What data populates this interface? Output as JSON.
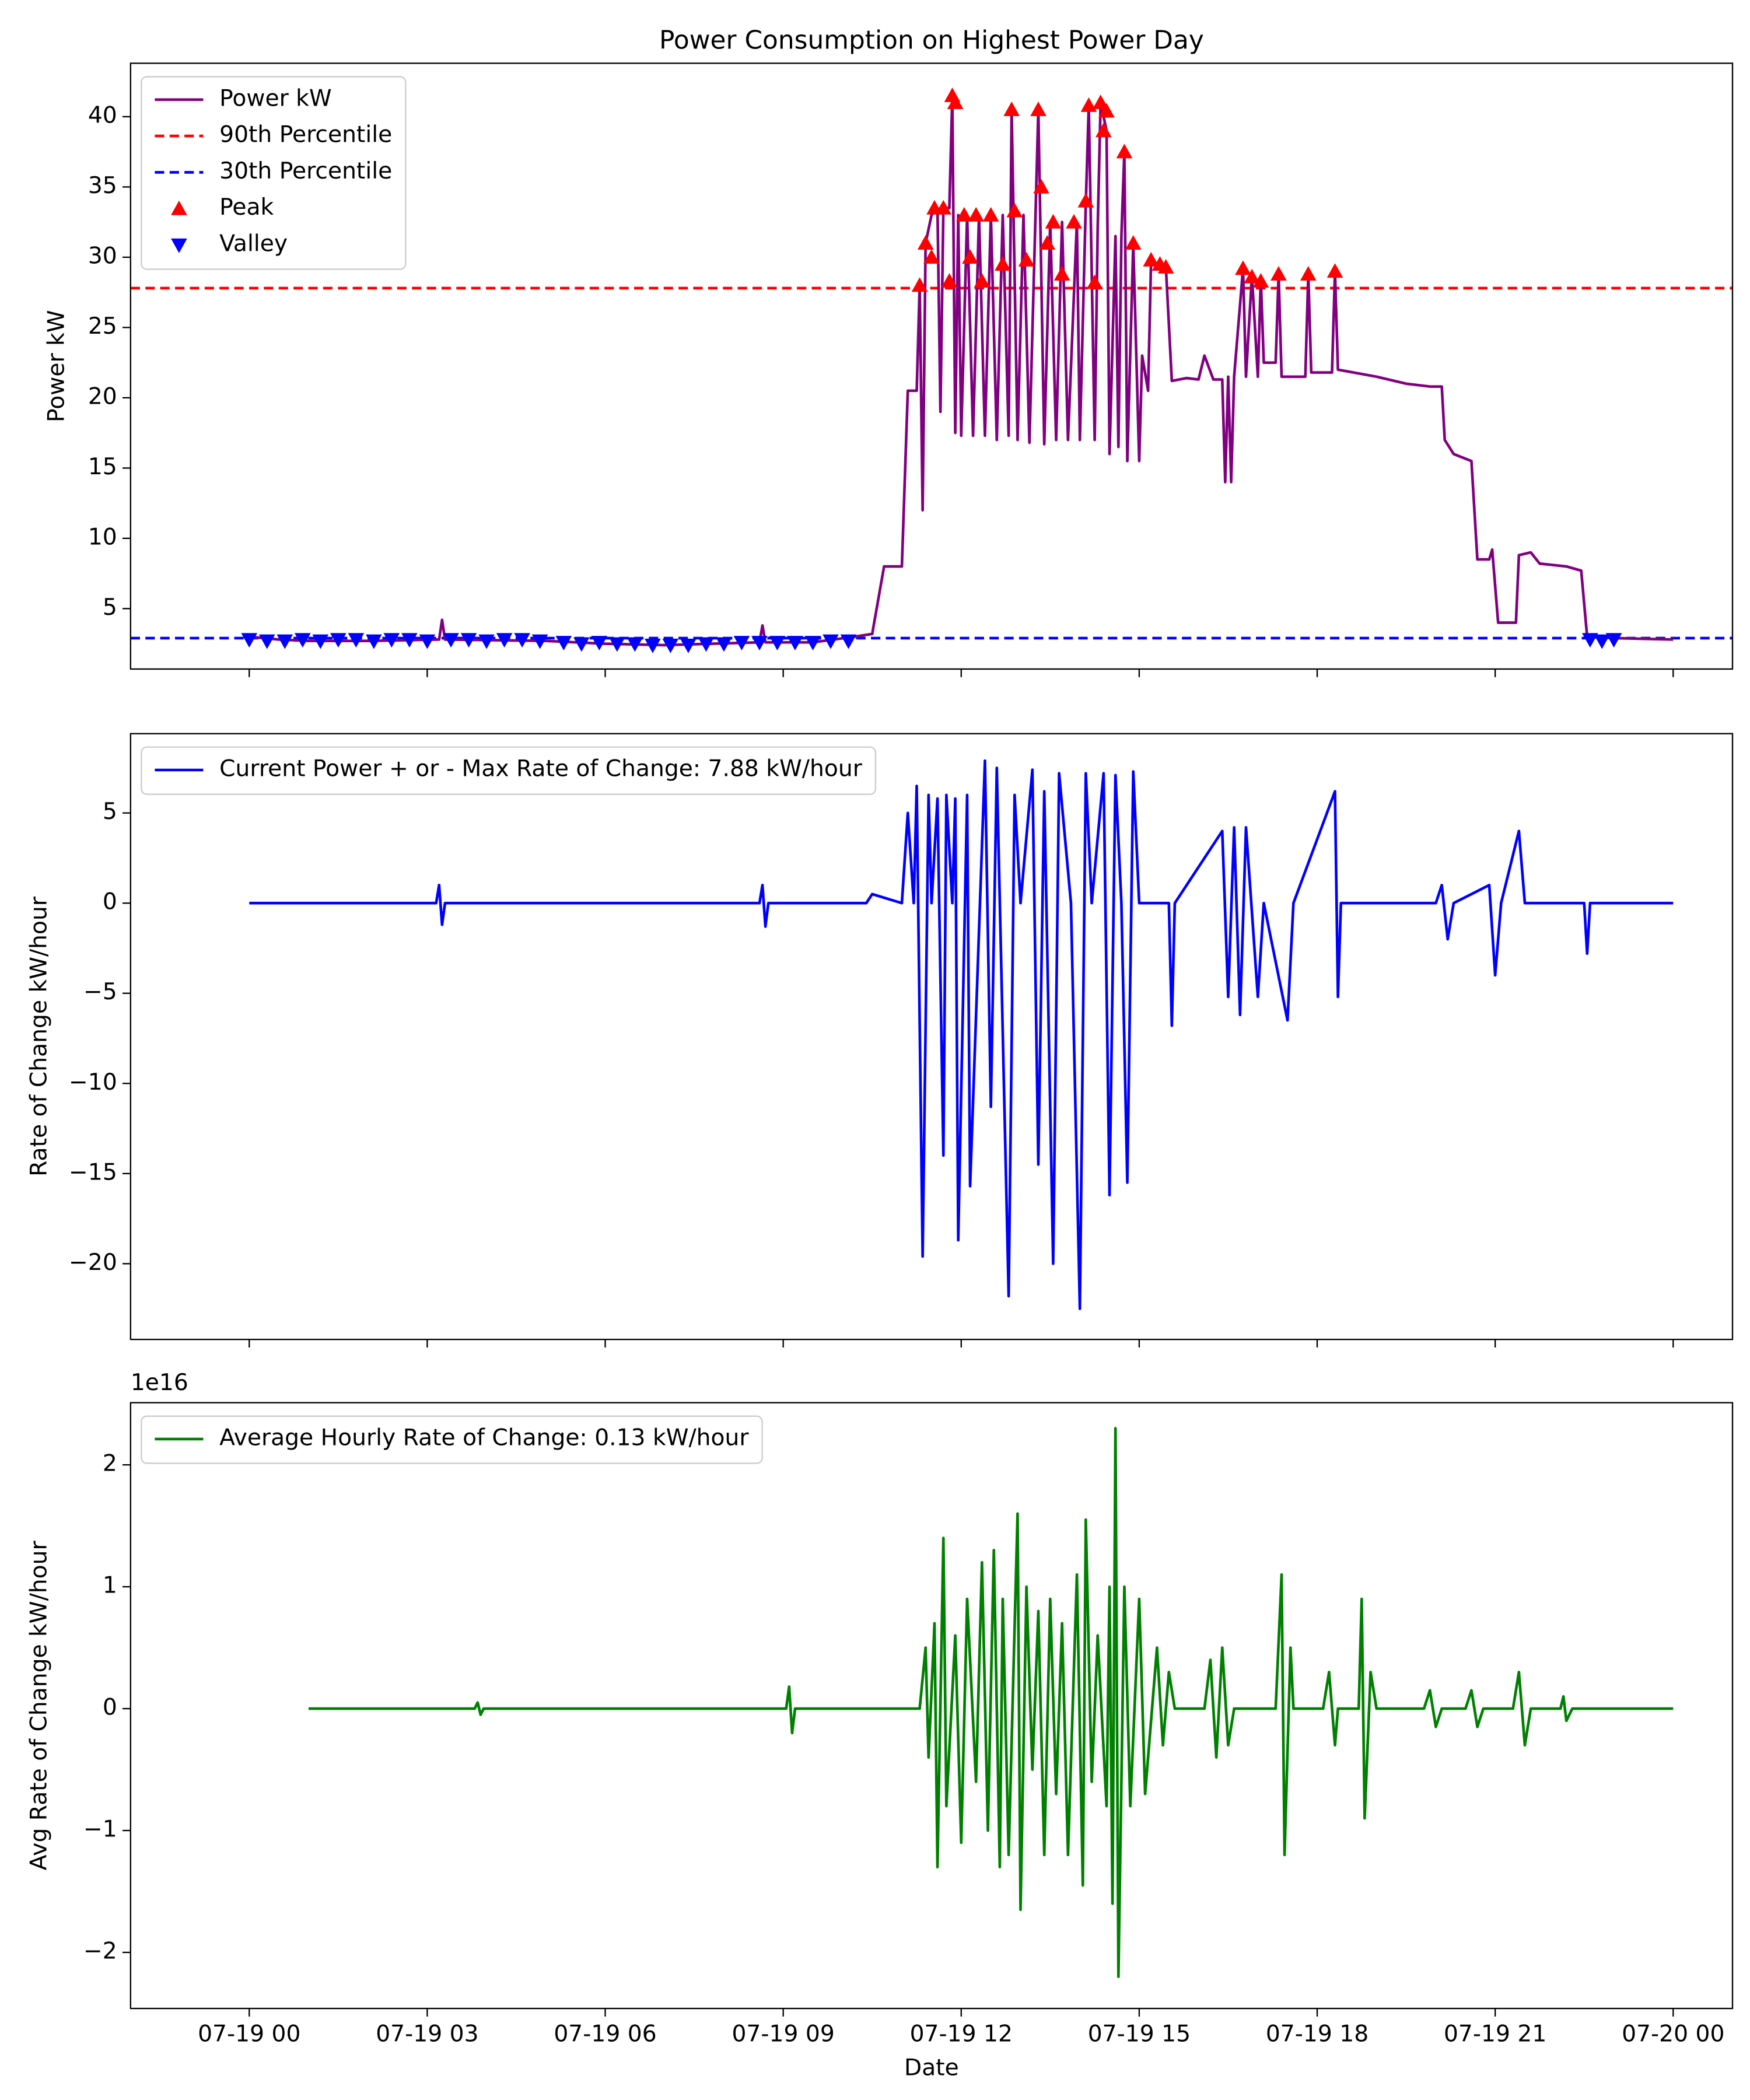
{
  "chart_data": [
    {
      "type": "line",
      "title": "Power Consumption on Highest Power Day",
      "ylabel": "Power kW",
      "xlim": [
        -2,
        25
      ],
      "ylim": [
        0.7,
        43.8
      ],
      "yticks": [
        5,
        10,
        15,
        20,
        25,
        30,
        35,
        40
      ],
      "legend": "upper left",
      "series": [
        {
          "name": "Power kW",
          "color": "purple",
          "x": [
            0,
            0.5,
            1,
            2,
            3.2,
            3.25,
            3.3,
            5,
            6,
            7,
            8.6,
            8.65,
            8.7,
            9.5,
            10.2,
            10.5,
            10.7,
            11,
            11.1,
            11.25,
            11.3,
            11.35,
            11.4,
            11.5,
            11.6,
            11.65,
            11.7,
            11.8,
            11.85,
            11.9,
            11.95,
            12,
            12.1,
            12.2,
            12.3,
            12.4,
            12.5,
            12.6,
            12.7,
            12.8,
            12.85,
            12.95,
            13.05,
            13.15,
            13.3,
            13.4,
            13.5,
            13.6,
            13.7,
            13.8,
            13.95,
            14,
            14.1,
            14.15,
            14.25,
            14.3,
            14.35,
            14.45,
            14.5,
            14.6,
            14.65,
            14.7,
            14.75,
            14.8,
            14.9,
            15,
            15.05,
            15.15,
            15.2,
            15.45,
            15.55,
            15.8,
            16,
            16.1,
            16.25,
            16.4,
            16.45,
            16.5,
            16.55,
            16.6,
            16.75,
            16.8,
            16.9,
            17,
            17.05,
            17.1,
            17.3,
            17.35,
            17.4,
            17.8,
            17.85,
            17.9,
            18.25,
            18.3,
            18.35,
            19,
            19.5,
            19.9,
            20.1,
            20.15,
            20.3,
            20.6,
            20.7,
            20.9,
            20.95,
            21.05,
            21.35,
            21.4,
            21.6,
            21.75,
            22.2,
            22.45,
            22.55,
            23,
            24
          ],
          "values": [
            3,
            2.8,
            2.7,
            2.7,
            2.8,
            4.2,
            2.8,
            2.7,
            2.5,
            2.4,
            2.6,
            3.8,
            2.6,
            2.6,
            3.0,
            3.2,
            8,
            8,
            20.5,
            20.5,
            28,
            12,
            31,
            33,
            33.5,
            19,
            33.5,
            33.5,
            41.5,
            17.5,
            33,
            17.3,
            33,
            17.3,
            33,
            17.3,
            33,
            17,
            33,
            17.3,
            40.5,
            17,
            33,
            16.8,
            40.5,
            16.7,
            32.5,
            17,
            32.5,
            17,
            32.5,
            17,
            33.8,
            40.8,
            17,
            32,
            41,
            39,
            16,
            31.5,
            16.5,
            31.5,
            37.5,
            15.5,
            31,
            15.5,
            23,
            20.5,
            29.7,
            29.3,
            21.2,
            21.4,
            21.3,
            23,
            21.3,
            21.3,
            14,
            21.5,
            14,
            21.5,
            29.2,
            21.5,
            28.7,
            21.5,
            28.5,
            22.5,
            22.5,
            28.8,
            21.5,
            21.5,
            28.8,
            21.8,
            21.8,
            29,
            22,
            21.5,
            21,
            20.8,
            20.8,
            17,
            16,
            15.5,
            8.5,
            8.5,
            9.2,
            4,
            4,
            8.8,
            9,
            8.2,
            8,
            7.7,
            3,
            2.9,
            2.8
          ]
        }
      ],
      "hlines": [
        {
          "name": "90th Percentile",
          "color": "red",
          "value": 27.8,
          "style": "dashed"
        },
        {
          "name": "30th Percentile",
          "color": "blue",
          "value": 2.9,
          "style": "dashed"
        }
      ],
      "markers": [
        {
          "name": "Peak",
          "color": "red",
          "shape": "triangle-up",
          "x": [
            11.3,
            11.4,
            11.5,
            11.55,
            11.7,
            11.8,
            11.85,
            11.9,
            12.05,
            12.15,
            12.25,
            12.35,
            12.5,
            12.7,
            12.85,
            12.9,
            13.1,
            13.3,
            13.35,
            13.45,
            13.55,
            13.7,
            13.9,
            14.1,
            14.15,
            14.25,
            14.35,
            14.4,
            14.45,
            14.75,
            14.9,
            15.2,
            15.35,
            15.45,
            16.75,
            16.9,
            17.05,
            17.35,
            17.85,
            18.3
          ],
          "values": [
            28,
            31,
            30,
            33.5,
            33.5,
            28.3,
            41.5,
            41,
            33,
            30,
            33,
            28.3,
            33,
            29.5,
            40.5,
            33.3,
            29.8,
            40.5,
            35,
            31,
            32.5,
            28.8,
            32.5,
            34,
            40.8,
            28.2,
            41,
            39,
            40.4,
            37.5,
            31,
            29.8,
            29.5,
            29.3,
            29.2,
            28.6,
            28.3,
            28.8,
            28.8,
            29
          ]
        },
        {
          "name": "Valley",
          "color": "blue",
          "shape": "triangle-down",
          "x": [
            0,
            0.3,
            0.6,
            0.9,
            1.2,
            1.5,
            1.8,
            2.1,
            2.4,
            2.7,
            3.0,
            3.4,
            3.7,
            4.0,
            4.3,
            4.6,
            4.9,
            5.3,
            5.6,
            5.9,
            6.2,
            6.5,
            6.8,
            7.1,
            7.4,
            7.7,
            8.0,
            8.3,
            8.6,
            8.9,
            9.2,
            9.5,
            9.8,
            10.1,
            22.6,
            22.8,
            23.0
          ],
          "values": [
            2.8,
            2.7,
            2.7,
            2.8,
            2.7,
            2.8,
            2.8,
            2.7,
            2.8,
            2.8,
            2.7,
            2.8,
            2.8,
            2.7,
            2.8,
            2.8,
            2.7,
            2.6,
            2.5,
            2.6,
            2.5,
            2.5,
            2.4,
            2.4,
            2.4,
            2.5,
            2.5,
            2.6,
            2.6,
            2.6,
            2.6,
            2.6,
            2.7,
            2.7,
            2.8,
            2.7,
            2.8
          ]
        }
      ]
    },
    {
      "type": "line",
      "ylabel": "Rate of Change kW/hour",
      "xlim": [
        -2,
        25
      ],
      "ylim": [
        -24.2,
        9.4
      ],
      "legend": "upper left",
      "yticks": [
        {
          "value": -20,
          "label": "−20"
        },
        {
          "value": -15,
          "label": "−15"
        },
        {
          "value": -10,
          "label": "−10"
        },
        {
          "value": -5,
          "label": "−5"
        },
        0,
        5
      ],
      "series": [
        {
          "name": "Current Power + or - Max Rate of Change: 7.88 kW/hour",
          "color": "blue",
          "x": [
            0,
            3.15,
            3.2,
            3.25,
            3.3,
            8.6,
            8.65,
            8.7,
            8.75,
            10.4,
            10.5,
            11,
            11.1,
            11.2,
            11.25,
            11.35,
            11.45,
            11.5,
            11.6,
            11.7,
            11.75,
            11.85,
            11.9,
            11.95,
            12.1,
            12.15,
            12.4,
            12.5,
            12.6,
            12.8,
            12.9,
            13,
            13.2,
            13.3,
            13.4,
            13.55,
            13.65,
            13.85,
            14,
            14.1,
            14.2,
            14.4,
            14.5,
            14.6,
            14.7,
            14.8,
            14.9,
            15,
            15.5,
            15.55,
            15.6,
            16.4,
            16.5,
            16.6,
            16.7,
            16.8,
            17,
            17.1,
            17.5,
            17.6,
            18.3,
            18.35,
            18.4,
            20,
            20.1,
            20.2,
            20.3,
            20.9,
            21,
            21.1,
            21.4,
            21.5,
            22.5,
            22.55,
            22.6,
            24
          ],
          "values": [
            0,
            0,
            1,
            -1.2,
            0,
            0,
            1,
            -1.3,
            0,
            0,
            0.5,
            0,
            5,
            0,
            6.5,
            -19.6,
            6,
            0,
            5.8,
            -14,
            6,
            0,
            5.8,
            -18.7,
            6,
            -15.7,
            7.9,
            -11.3,
            7.5,
            -21.8,
            6,
            0,
            7.4,
            -14.5,
            6.2,
            -20,
            7.2,
            0,
            -22.5,
            7.2,
            0,
            7.2,
            -16.2,
            7.1,
            0,
            -15.5,
            7.3,
            0,
            0,
            -6.8,
            0,
            4,
            -5.2,
            4.2,
            -6.2,
            4.2,
            -5.2,
            0,
            -6.5,
            0,
            6.2,
            -5.2,
            0,
            0,
            1,
            -2,
            0,
            1,
            -4,
            0,
            4,
            0,
            0,
            -2.8,
            0,
            0
          ]
        }
      ]
    },
    {
      "type": "line",
      "ylabel": "Avg Rate of Change kW/hour",
      "xlabel": "Date",
      "offset_label": "1e16",
      "xlim": [
        -2,
        25
      ],
      "ylim": [
        -2.46,
        2.51
      ],
      "legend": "upper left",
      "yticks": [
        {
          "value": -2,
          "label": "−2"
        },
        {
          "value": -1,
          "label": "−1"
        },
        0,
        1,
        2
      ],
      "xticks": [
        {
          "value": 0,
          "label": "07-19 00"
        },
        {
          "value": 3,
          "label": "07-19 03"
        },
        {
          "value": 6,
          "label": "07-19 06"
        },
        {
          "value": 9,
          "label": "07-19 09"
        },
        {
          "value": 12,
          "label": "07-19 12"
        },
        {
          "value": 15,
          "label": "07-19 15"
        },
        {
          "value": 18,
          "label": "07-19 18"
        },
        {
          "value": 21,
          "label": "07-19 21"
        },
        {
          "value": 24,
          "label": "07-20 00"
        }
      ],
      "series": [
        {
          "name": "Average Hourly Rate of Change: 0.13 kW/hour",
          "color": "green",
          "x": [
            1,
            3.8,
            3.85,
            3.9,
            3.95,
            9.05,
            9.1,
            9.15,
            9.2,
            11.3,
            11.4,
            11.45,
            11.55,
            11.6,
            11.7,
            11.75,
            11.9,
            12,
            12.1,
            12.25,
            12.35,
            12.45,
            12.55,
            12.65,
            12.7,
            12.8,
            12.95,
            13,
            13.1,
            13.2,
            13.3,
            13.4,
            13.5,
            13.6,
            13.7,
            13.8,
            13.95,
            14.05,
            14.1,
            14.2,
            14.3,
            14.45,
            14.5,
            14.55,
            14.6,
            14.65,
            14.75,
            14.85,
            15,
            15.1,
            15.3,
            15.4,
            15.5,
            15.6,
            16.1,
            16.2,
            16.3,
            16.4,
            16.5,
            16.6,
            17.3,
            17.4,
            17.45,
            17.55,
            17.6,
            18.1,
            18.2,
            18.3,
            18.35,
            18.7,
            18.75,
            18.8,
            18.9,
            19,
            19.8,
            19.9,
            20,
            20.1,
            20.5,
            20.6,
            20.7,
            20.8,
            21.3,
            21.4,
            21.5,
            21.6,
            22.1,
            22.15,
            22.2,
            22.3,
            24
          ],
          "values": [
            0,
            0,
            0.05,
            -0.05,
            0,
            0,
            0.18,
            -0.2,
            0,
            0,
            0.5,
            -0.4,
            0.7,
            -1.3,
            1.4,
            -0.8,
            0.6,
            -1.1,
            0.9,
            -0.6,
            1.2,
            -1.0,
            1.3,
            -1.3,
            0.9,
            -1.2,
            1.6,
            -1.65,
            1.0,
            -0.5,
            0.8,
            -1.2,
            0.9,
            -0.7,
            0.7,
            -1.2,
            1.1,
            -1.45,
            1.55,
            -0.6,
            0.6,
            -0.8,
            1.0,
            -1.6,
            2.3,
            -2.2,
            1.0,
            -0.8,
            0.9,
            -0.7,
            0.5,
            -0.3,
            0.3,
            0,
            0,
            0.4,
            -0.4,
            0.5,
            -0.3,
            0,
            0,
            1.1,
            -1.2,
            0.5,
            0,
            0,
            0.3,
            -0.3,
            0,
            0,
            0.9,
            -0.9,
            0.3,
            0,
            0,
            0.15,
            -0.15,
            0,
            0,
            0.15,
            -0.15,
            0,
            0,
            0.3,
            -0.3,
            0,
            0,
            0.1,
            -0.1,
            0,
            0
          ]
        }
      ]
    }
  ]
}
